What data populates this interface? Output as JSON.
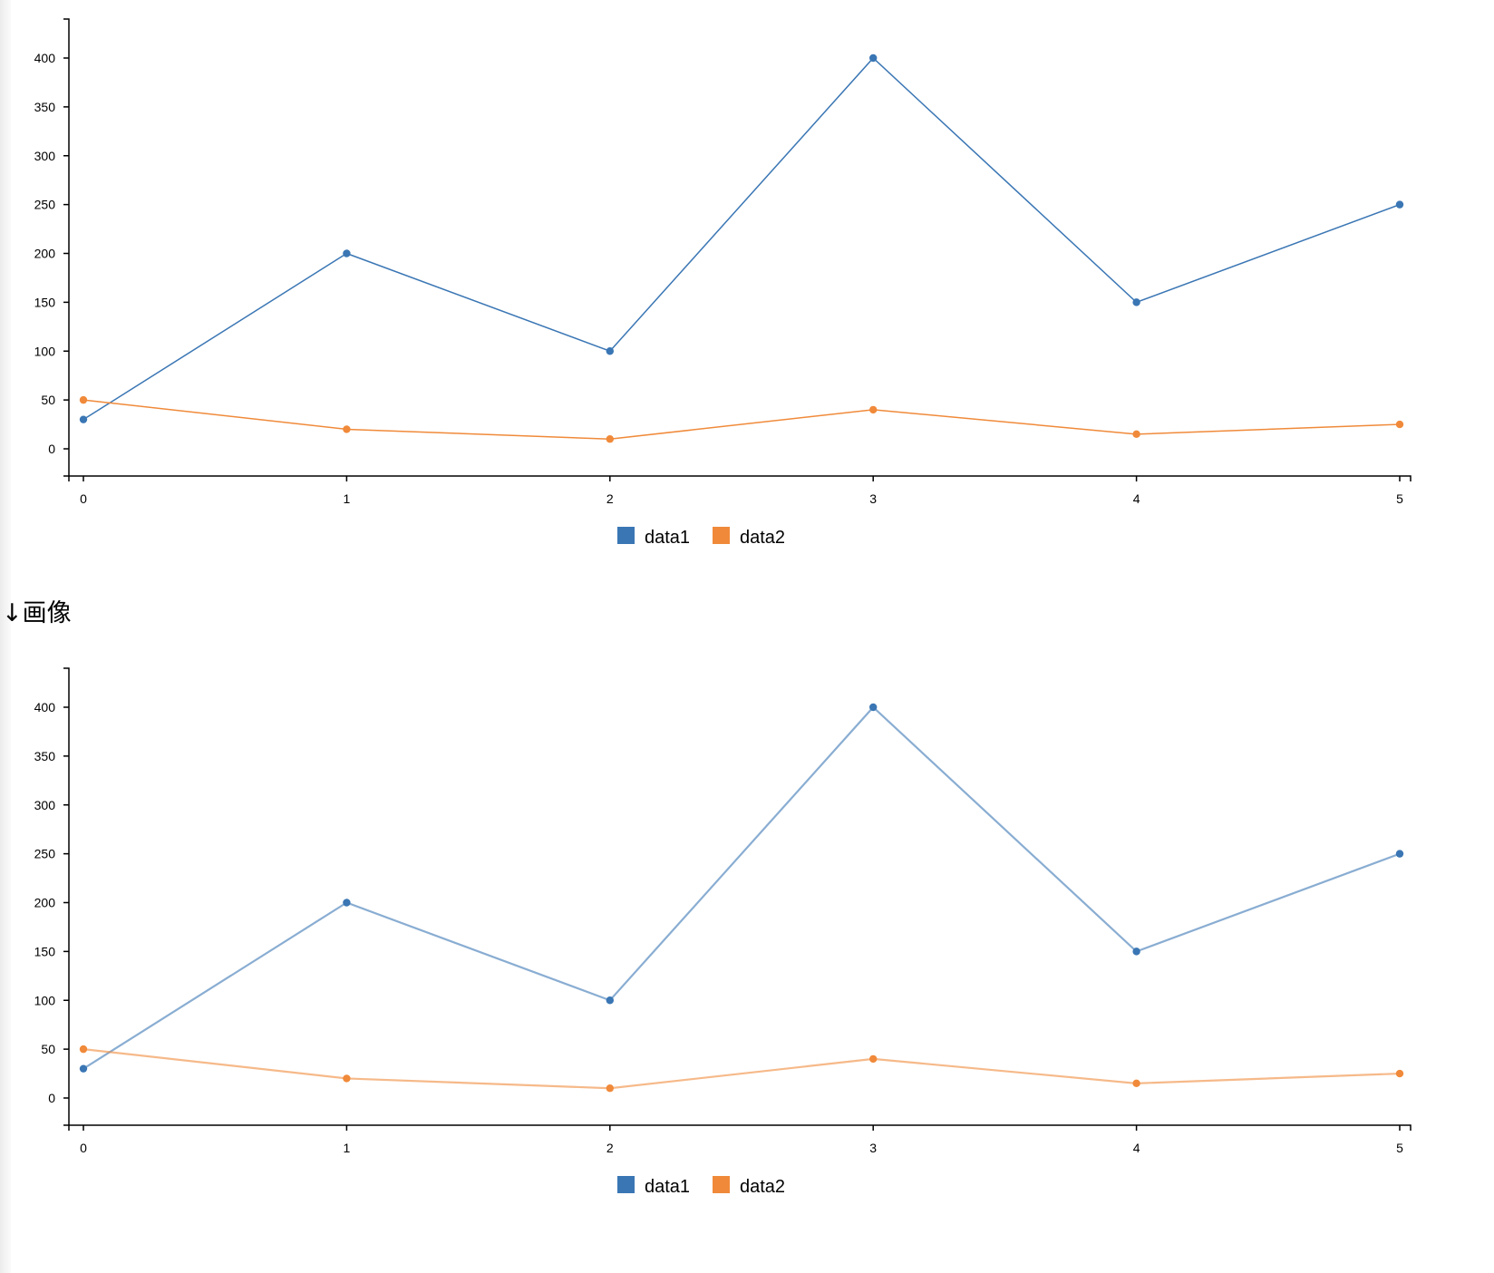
{
  "heading": {
    "text": "↓画像"
  },
  "colors": {
    "data1": "#3a76b4",
    "data2": "#f08a3a",
    "axis": "#000000"
  },
  "chart_data": [
    {
      "type": "line",
      "title": "",
      "xlabel": "",
      "ylabel": "",
      "x": [
        0,
        1,
        2,
        3,
        4,
        5
      ],
      "x_ticks": [
        "0",
        "1",
        "2",
        "3",
        "4",
        "5"
      ],
      "y_ticks": [
        "0",
        "50",
        "100",
        "150",
        "200",
        "250",
        "300",
        "350",
        "400"
      ],
      "ylim": [
        -28,
        440
      ],
      "grid": false,
      "legend_position": "bottom-center",
      "series": [
        {
          "name": "data1",
          "color": "#3a76b4",
          "values": [
            30,
            200,
            100,
            400,
            150,
            250
          ]
        },
        {
          "name": "data2",
          "color": "#f08a3a",
          "values": [
            50,
            20,
            10,
            40,
            15,
            25
          ]
        }
      ]
    },
    {
      "type": "line",
      "title": "",
      "xlabel": "",
      "ylabel": "",
      "x": [
        0,
        1,
        2,
        3,
        4,
        5
      ],
      "x_ticks": [
        "0",
        "1",
        "2",
        "3",
        "4",
        "5"
      ],
      "y_ticks": [
        "0",
        "50",
        "100",
        "150",
        "200",
        "250",
        "300",
        "350",
        "400"
      ],
      "ylim": [
        -28,
        440
      ],
      "grid": false,
      "legend_position": "bottom-center",
      "line_opacity": 0.6,
      "series": [
        {
          "name": "data1",
          "color": "#3a76b4",
          "values": [
            30,
            200,
            100,
            400,
            150,
            250
          ]
        },
        {
          "name": "data2",
          "color": "#f08a3a",
          "values": [
            50,
            20,
            10,
            40,
            15,
            25
          ]
        }
      ]
    }
  ],
  "legend": [
    {
      "label": "data1",
      "color": "#3a76b4"
    },
    {
      "label": "data2",
      "color": "#f08a3a"
    }
  ]
}
